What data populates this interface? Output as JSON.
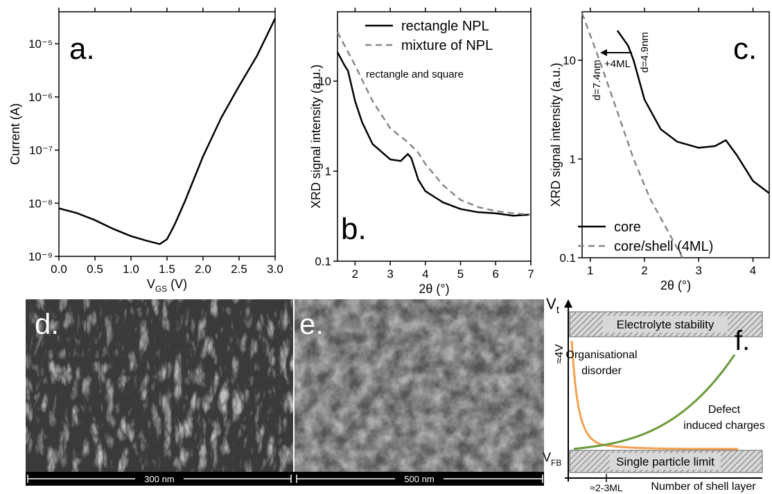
{
  "chart_data": [
    {
      "type": "line",
      "panel_label": "a.",
      "x_label": [
        "V",
        "GS",
        " (V)"
      ],
      "y_label": "Current (A)",
      "log_y": true,
      "xlim": [
        0,
        3
      ],
      "ylim": [
        1e-09,
        4e-05
      ],
      "xticks": [
        {
          "value": 0,
          "label": "0.0"
        },
        0.5,
        {
          "value": 1,
          "label": "1.0"
        },
        1.5,
        {
          "value": 2,
          "label": "2.0"
        },
        2.5,
        {
          "value": 3,
          "label": "3.0"
        }
      ],
      "yticks": [
        {
          "value": 1e-09,
          "label": "10⁻⁹"
        },
        {
          "value": 1e-08,
          "label": "10⁻⁸"
        },
        {
          "value": 1e-07,
          "label": "10⁻⁷"
        },
        {
          "value": 1e-06,
          "label": "10⁻⁶"
        },
        {
          "value": 1e-05,
          "label": "10⁻⁵"
        }
      ],
      "series": [
        {
          "color": "#000000",
          "dashed": false,
          "x": [
            0,
            0.25,
            0.5,
            0.75,
            1.0,
            1.2,
            1.4,
            1.5,
            1.6,
            1.75,
            2.0,
            2.25,
            2.5,
            2.75,
            3.0
          ],
          "values": [
            8e-09,
            6.5e-09,
            4.8e-09,
            3.3e-09,
            2.4e-09,
            2e-09,
            1.7e-09,
            2.1e-09,
            3.8e-09,
            1.1e-08,
            7.6e-08,
            4e-07,
            1.6e-06,
            6e-06,
            3e-05
          ]
        }
      ]
    },
    {
      "type": "line",
      "panel_label": "b.",
      "x_label": [
        "2θ (°)"
      ],
      "y_label": "XRD signal intensity (a.u.)",
      "log_y": true,
      "xlim": [
        1.5,
        7
      ],
      "ylim": [
        0.1,
        59
      ],
      "xticks": [
        2,
        3,
        4,
        5,
        6,
        7
      ],
      "yticks": [
        0.1,
        1,
        10
      ],
      "legend": "upper right",
      "annotations": [
        "rectangle and square"
      ],
      "series": [
        {
          "name": "rectangle NPL",
          "color": "#000000",
          "dashed": false,
          "x": [
            1.5,
            1.7,
            1.8,
            2.0,
            2.2,
            2.5,
            3.0,
            3.3,
            3.5,
            3.6,
            3.8,
            4.0,
            4.5,
            5.0,
            5.5,
            6.0,
            6.5,
            7.0
          ],
          "values": [
            21,
            15,
            13,
            6,
            3.5,
            2.0,
            1.35,
            1.3,
            1.55,
            1.4,
            0.8,
            0.6,
            0.45,
            0.38,
            0.35,
            0.34,
            0.32,
            0.33
          ]
        },
        {
          "name": "mixture of NPL",
          "color": "#888888",
          "dashed": true,
          "x": [
            1.5,
            2.0,
            2.5,
            3.0,
            3.5,
            3.8,
            4.0,
            4.5,
            5.0,
            5.5,
            6.0,
            6.5,
            7.0
          ],
          "values": [
            35,
            15,
            6,
            3,
            2.1,
            1.6,
            1.2,
            0.7,
            0.48,
            0.4,
            0.36,
            0.34,
            0.33
          ]
        }
      ]
    },
    {
      "type": "line",
      "panel_label": "c.",
      "x_label": [
        "2θ (°)"
      ],
      "y_label": "XRD signal intensity (a.u.)",
      "log_y": true,
      "xlim": [
        0.85,
        4.3
      ],
      "ylim": [
        0.1,
        31
      ],
      "xticks": [
        1,
        2,
        3,
        4
      ],
      "yticks": [
        0.1,
        1,
        10
      ],
      "legend": "lower left",
      "annotations": [
        "d=4.9nm",
        "d=7.4nm",
        "+4ML"
      ],
      "series": [
        {
          "name": "core",
          "color": "#000000",
          "dashed": false,
          "x": [
            1.5,
            1.7,
            1.8,
            2.0,
            2.3,
            2.6,
            3.0,
            3.3,
            3.5,
            3.7,
            4.0,
            4.3
          ],
          "values": [
            20,
            14,
            10,
            4,
            2,
            1.5,
            1.3,
            1.35,
            1.55,
            1.1,
            0.6,
            0.45
          ]
        },
        {
          "name": "core/shell (4ML)",
          "color": "#888888",
          "dashed": true,
          "x": [
            0.85,
            1.0,
            1.2,
            1.5,
            1.8,
            2.1,
            2.4,
            2.7
          ],
          "values": [
            30,
            18,
            9,
            3,
            1,
            0.4,
            0.2,
            0.1
          ]
        }
      ]
    }
  ],
  "images": [
    {
      "label": "d.",
      "scale_bar": "300 nm"
    },
    {
      "label": "e.",
      "scale_bar": "500 nm"
    }
  ],
  "diagram": {
    "label": "f.",
    "y_axis": [
      "V",
      "t"
    ],
    "x_axis": "Number of shell layer",
    "top_box": "Electrolyte stability",
    "bottom_box": "Single particle limit",
    "y_high": "≈4V",
    "y_low": [
      "V",
      "FB"
    ],
    "x_mark": "≈2-3ML",
    "curve_labels": [
      [
        "Organisational",
        "disorder"
      ],
      [
        "Defect",
        "induced charges"
      ]
    ]
  }
}
